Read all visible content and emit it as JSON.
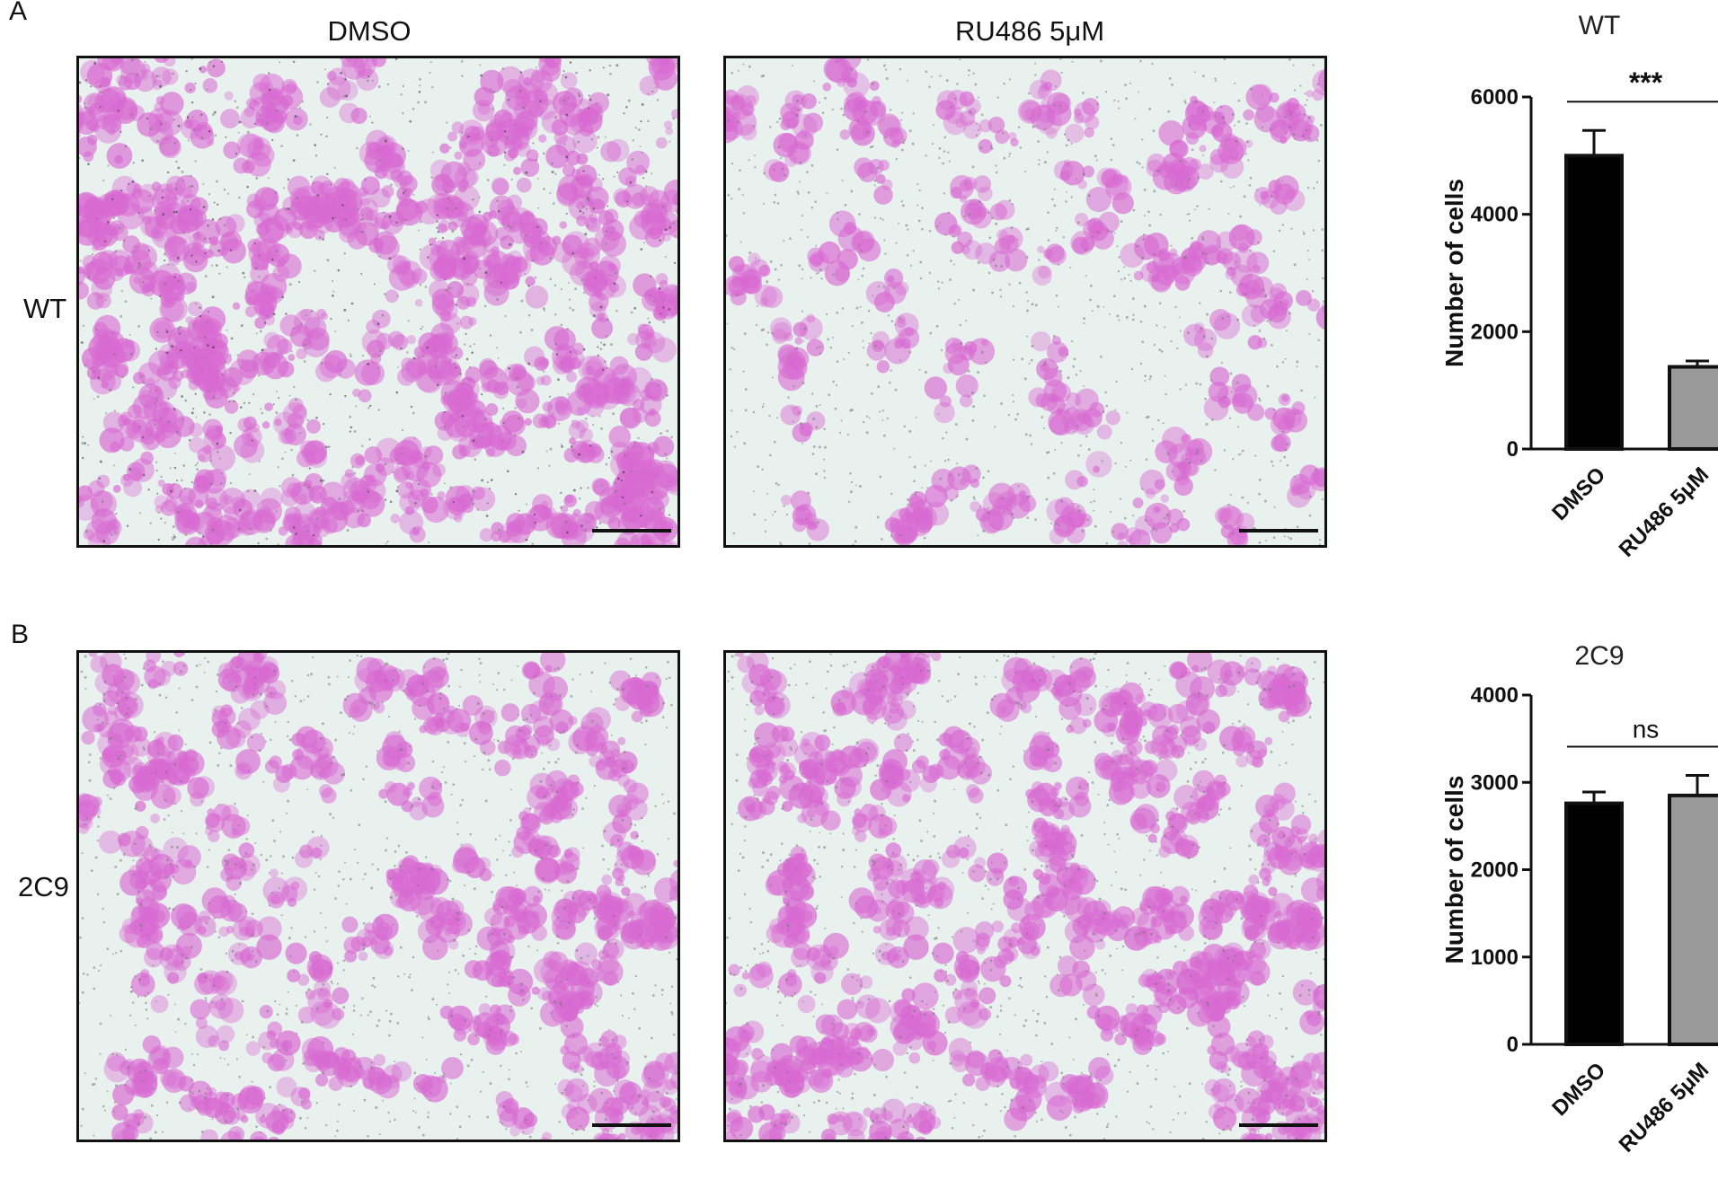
{
  "panels": [
    {
      "letter": "A",
      "row_label": "WT",
      "col_labels": [
        "DMSO",
        "RU486 5μM"
      ]
    },
    {
      "letter": "B",
      "row_label": "2C9"
    }
  ],
  "colors": {
    "dmso_bar": "#000000",
    "ru486_bar": "#999999",
    "stain": "#d86ad2",
    "background": "#e9f1ef"
  },
  "chart_data": [
    {
      "type": "bar",
      "title": "WT",
      "categories": [
        "DMSO",
        "RU486 5μM"
      ],
      "values": [
        5000,
        1400
      ],
      "error": [
        430,
        100
      ],
      "ylabel": "Number of cells",
      "ylim": [
        0,
        6000
      ],
      "yticks": [
        "0",
        "2000",
        "4000",
        "6000"
      ],
      "significance": "***"
    },
    {
      "type": "bar",
      "title": "2C9",
      "categories": [
        "DMSO",
        "RU486 5μM"
      ],
      "values": [
        2760,
        2850
      ],
      "error": [
        130,
        230
      ],
      "ylabel": "Number of cells",
      "ylim": [
        0,
        4000
      ],
      "yticks": [
        "0",
        "1000",
        "2000",
        "3000",
        "4000"
      ],
      "significance": "ns"
    }
  ]
}
